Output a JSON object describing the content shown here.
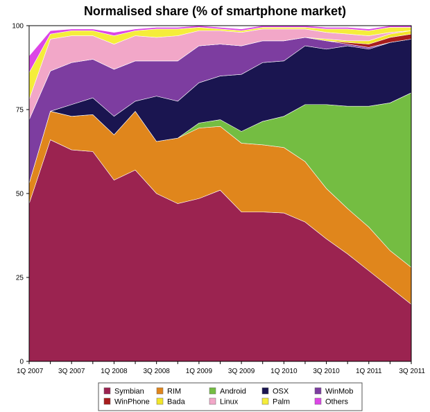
{
  "chart_data": {
    "type": "area",
    "stacked": true,
    "title": "Normalised share (% of smartphone market)",
    "xlabel": "",
    "ylabel": "",
    "ylim": [
      0,
      100
    ],
    "yticks": [
      "0",
      "25",
      "50",
      "75",
      "100"
    ],
    "x": [
      "1Q 2007",
      "2Q 2007",
      "3Q 2007",
      "4Q 2007",
      "1Q 2008",
      "2Q 2008",
      "3Q 2008",
      "4Q 2008",
      "1Q 2009",
      "2Q 2009",
      "3Q 2009",
      "4Q 2009",
      "1Q 2010",
      "2Q 2010",
      "3Q 2010",
      "4Q 2010",
      "1Q 2011",
      "2Q 2011",
      "3Q 2011"
    ],
    "xticks": [
      "1Q 2007",
      "3Q 2007",
      "1Q 2008",
      "3Q 2008",
      "1Q 2009",
      "3Q 2009",
      "1Q 2010",
      "3Q 2010",
      "1Q 2011",
      "3Q 2011"
    ],
    "legend_position": "bottom",
    "grid": false,
    "series": [
      {
        "name": "Symbian",
        "color": "#9b2350",
        "values": [
          47,
          66,
          63,
          62.5,
          54,
          57,
          50,
          47,
          48.5,
          51,
          44.5,
          44.5,
          44.2,
          41.5,
          36.5,
          32,
          27,
          22,
          17
        ]
      },
      {
        "name": "RIM",
        "color": "#e0861c",
        "values": [
          6,
          8.5,
          10,
          11,
          13.5,
          17.5,
          15.5,
          19.5,
          21,
          19,
          20.5,
          20,
          19.5,
          18,
          15,
          13.5,
          13,
          11,
          11
        ]
      },
      {
        "name": "Android",
        "color": "#74bd42",
        "values": [
          0,
          0,
          0,
          0,
          0,
          0,
          0,
          0,
          1.5,
          2,
          3.5,
          7,
          9.3,
          17,
          25,
          30.5,
          36,
          44,
          52
        ]
      },
      {
        "name": "OSX",
        "color": "#1a1550",
        "values": [
          0,
          0,
          3.5,
          5,
          5.5,
          3,
          13.5,
          11,
          12,
          13,
          17,
          17.5,
          16.5,
          17.5,
          16.5,
          18,
          17,
          18,
          16
        ]
      },
      {
        "name": "WinMob",
        "color": "#7d3da0",
        "values": [
          19,
          12,
          12.5,
          11.5,
          14,
          12,
          10.5,
          12,
          11,
          9.5,
          8.5,
          6.5,
          6,
          2.5,
          2.5,
          0.5,
          0.5,
          0,
          0
        ]
      },
      {
        "name": "WinPhone",
        "color": "#a81d1d",
        "values": [
          0,
          0,
          0,
          0,
          0,
          0,
          0,
          0,
          0,
          0,
          0,
          0,
          0,
          0,
          0,
          0.5,
          1,
          1.5,
          1.5
        ]
      },
      {
        "name": "Bada",
        "color": "#f2e52a",
        "values": [
          0,
          0,
          0,
          0,
          0,
          0,
          0,
          0,
          0,
          0,
          0,
          0,
          0,
          0,
          0.5,
          0.5,
          1,
          1,
          1
        ]
      },
      {
        "name": "Linux",
        "color": "#f2a7c8",
        "values": [
          6,
          9.5,
          8,
          7,
          7.5,
          7.5,
          7,
          7.5,
          4.5,
          4,
          4,
          3.5,
          3.5,
          2.5,
          2,
          2,
          1.5,
          0.5,
          0
        ]
      },
      {
        "name": "Palm",
        "color": "#f5ed3a",
        "values": [
          8,
          1.5,
          1.5,
          1.5,
          2.5,
          1.5,
          2.5,
          2,
          1,
          0.5,
          0.5,
          0.5,
          0.5,
          0.5,
          1,
          1.5,
          1.5,
          1.5,
          1
        ]
      },
      {
        "name": "Others",
        "color": "#dc46e6",
        "values": [
          5,
          1,
          0.5,
          0.5,
          1,
          0.5,
          0.5,
          0.5,
          0.5,
          0.5,
          0.5,
          0.5,
          0.5,
          0.5,
          0.5,
          0.5,
          0.5,
          0.5,
          0.5
        ]
      }
    ],
    "legend_order": [
      "Symbian",
      "RIM",
      "Android",
      "OSX",
      "WinMob",
      "WinPhone",
      "Bada",
      "Linux",
      "Palm",
      "Others"
    ]
  }
}
